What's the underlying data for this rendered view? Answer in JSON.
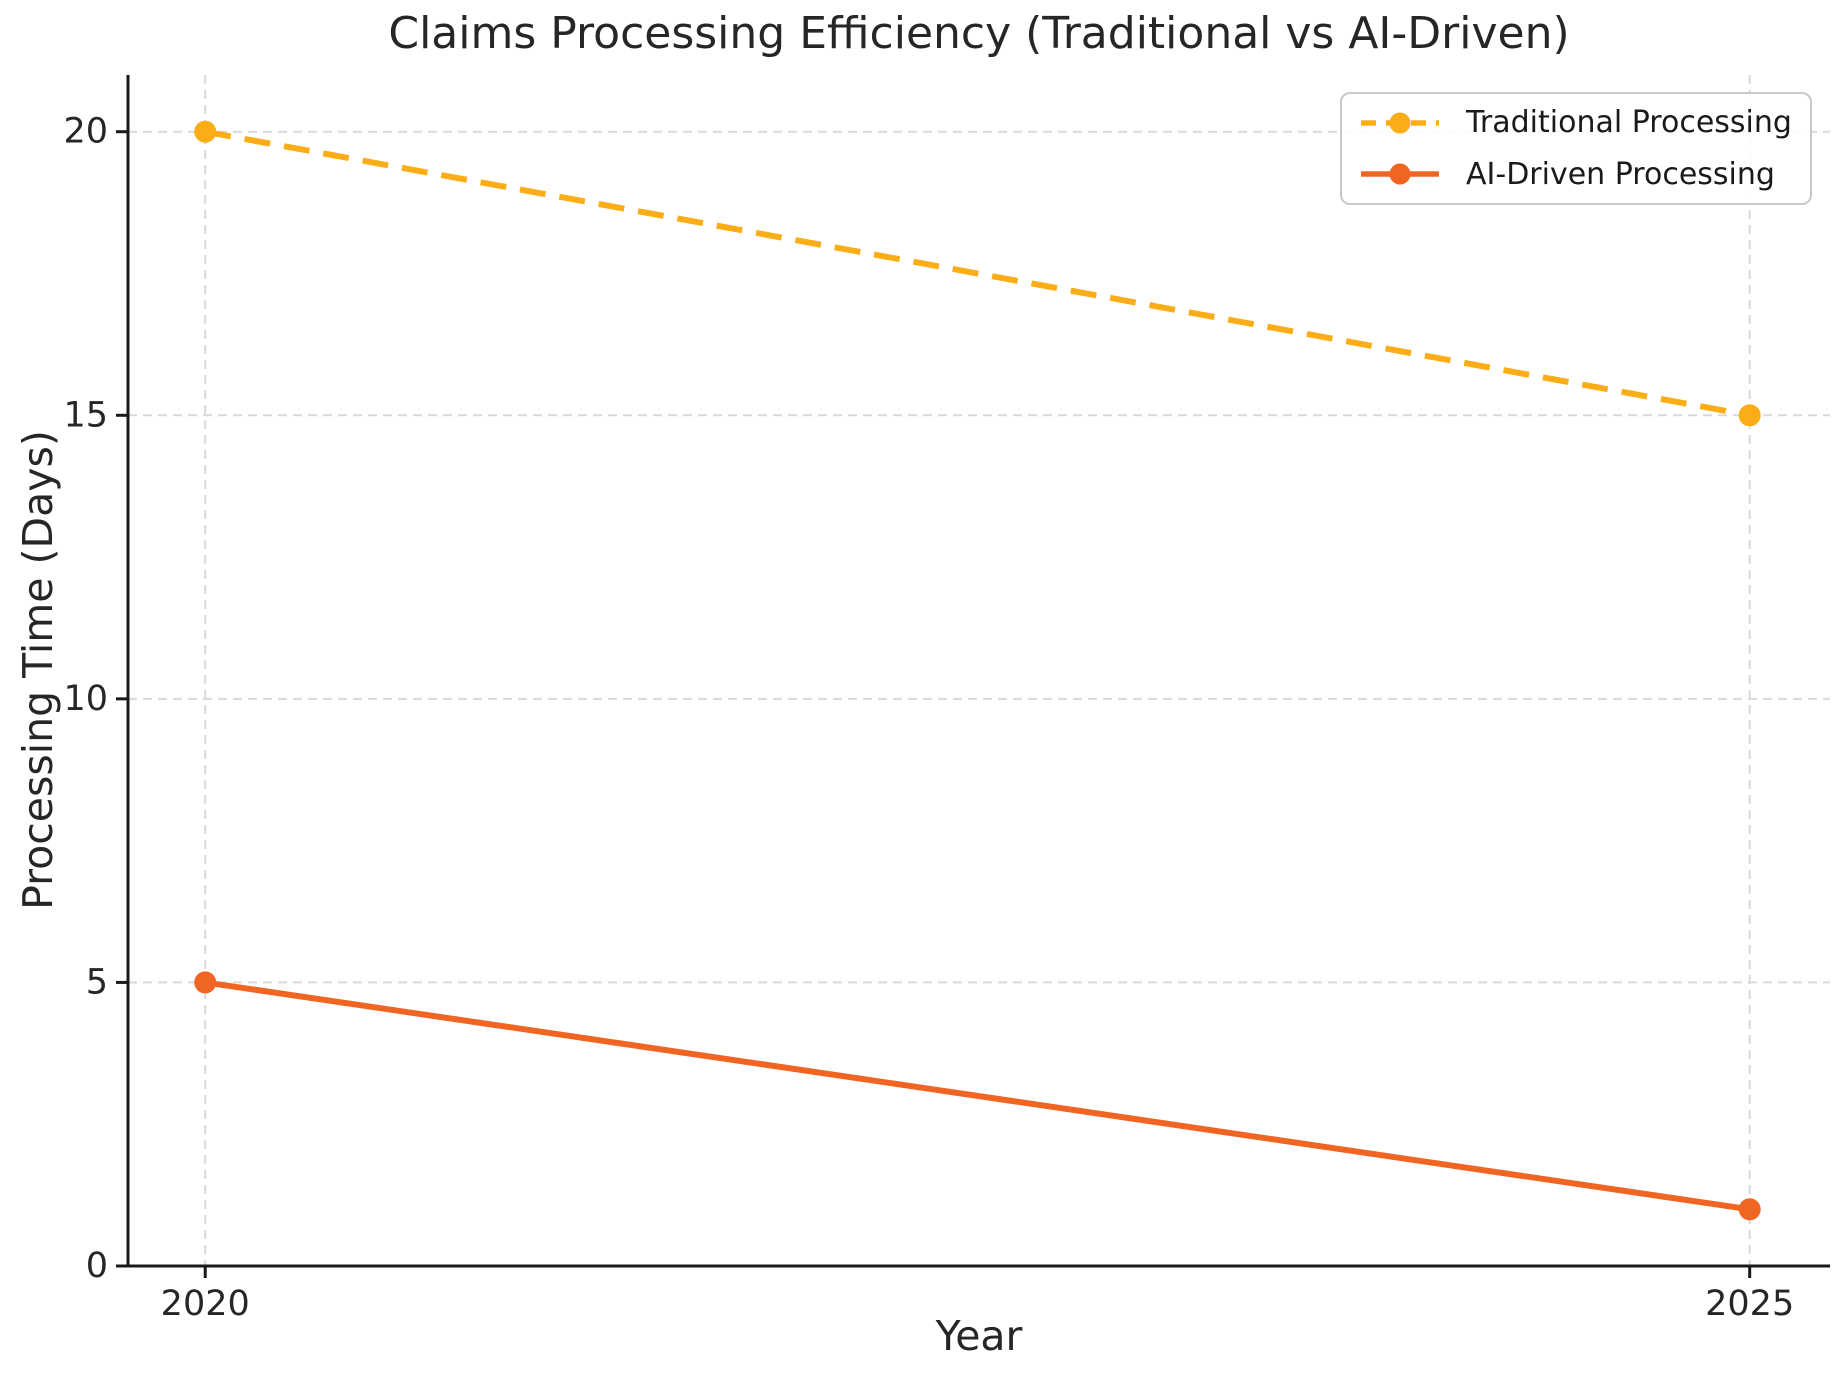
{
  "chart_data": {
    "type": "line",
    "title": "Claims Processing Efficiency (Traditional vs AI-Driven)",
    "xlabel": "Year",
    "ylabel": "Processing Time (Days)",
    "x": [
      2020,
      2025
    ],
    "series": [
      {
        "name": "Traditional Processing",
        "values": [
          20,
          15
        ],
        "color": "#FBAD18",
        "line_style": "dashed",
        "marker": "circle"
      },
      {
        "name": "AI-Driven Processing",
        "values": [
          5,
          1
        ],
        "color": "#F16522",
        "line_style": "solid",
        "marker": "circle"
      }
    ],
    "xticks": [
      2020,
      2025
    ],
    "yticks": [
      0,
      5,
      10,
      15,
      20
    ],
    "xlim": [
      2019.75,
      2025.26
    ],
    "ylim": [
      0,
      21
    ],
    "grid": true,
    "grid_on": true,
    "legend_position": "upper right",
    "colors": {
      "grid": "#D9D9D9",
      "axis": "#1A1A1A",
      "text": "#262626",
      "background": "#FFFFFF"
    }
  }
}
